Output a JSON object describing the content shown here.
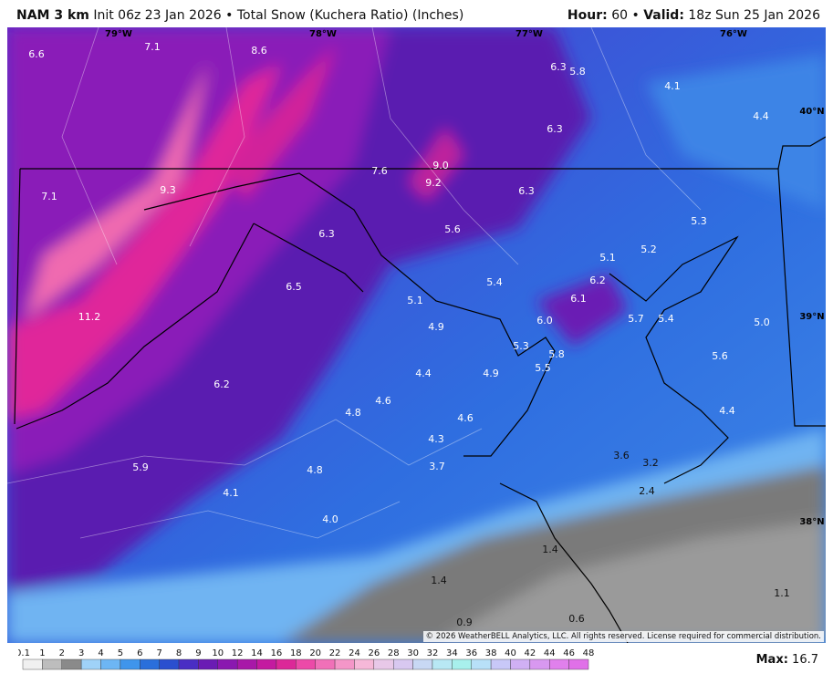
{
  "header": {
    "model": "NAM 3 km",
    "init": "Init 06z 23 Jan 2026",
    "separator": "•",
    "product": "Total Snow (Kuchera Ratio) (Inches)",
    "hour_label": "Hour:",
    "hour": "60",
    "valid_label": "Valid:",
    "valid": "18z Sun 25 Jan 2026"
  },
  "map": {
    "grid_labels": [
      "79°W",
      "78°W",
      "77°W",
      "76°W",
      "40°N",
      "39°N",
      "38°N"
    ],
    "values": [
      "6.6",
      "7.1",
      "8.6",
      "6.3",
      "5.8",
      "4.1",
      "4.4",
      "6.3",
      "7.6",
      "9.0",
      "9.2",
      "7.1",
      "9.3",
      "6.3",
      "5.3",
      "6.3",
      "5.6",
      "5.2",
      "5.1",
      "6.5",
      "5.4",
      "6.2",
      "6.1",
      "5.1",
      "11.2",
      "6.0",
      "5.7",
      "5.4",
      "5.0",
      "4.9",
      "5.3",
      "5.8",
      "5.6",
      "5.5",
      "4.4",
      "4.9",
      "6.2",
      "4.6",
      "4.8",
      "4.4",
      "4.6",
      "4.3",
      "3.6",
      "3.2",
      "5.9",
      "3.7",
      "4.8",
      "2.4",
      "4.1",
      "4.0",
      "1.4",
      "1.4",
      "1.1",
      "0.6",
      "0.9"
    ]
  },
  "copyright": "© 2026 WeatherBELL Analytics, LLC. All rights reserved. License required for commercial distribution.",
  "colorbar": {
    "ticks": [
      "0.1",
      "1",
      "2",
      "3",
      "4",
      "5",
      "6",
      "7",
      "8",
      "9",
      "10",
      "12",
      "14",
      "16",
      "18",
      "20",
      "22",
      "24",
      "26",
      "28",
      "30",
      "32",
      "34",
      "36",
      "38",
      "40",
      "42",
      "44",
      "46",
      "48"
    ]
  },
  "footer": {
    "max_label": "Max:",
    "max": "16.7"
  }
}
